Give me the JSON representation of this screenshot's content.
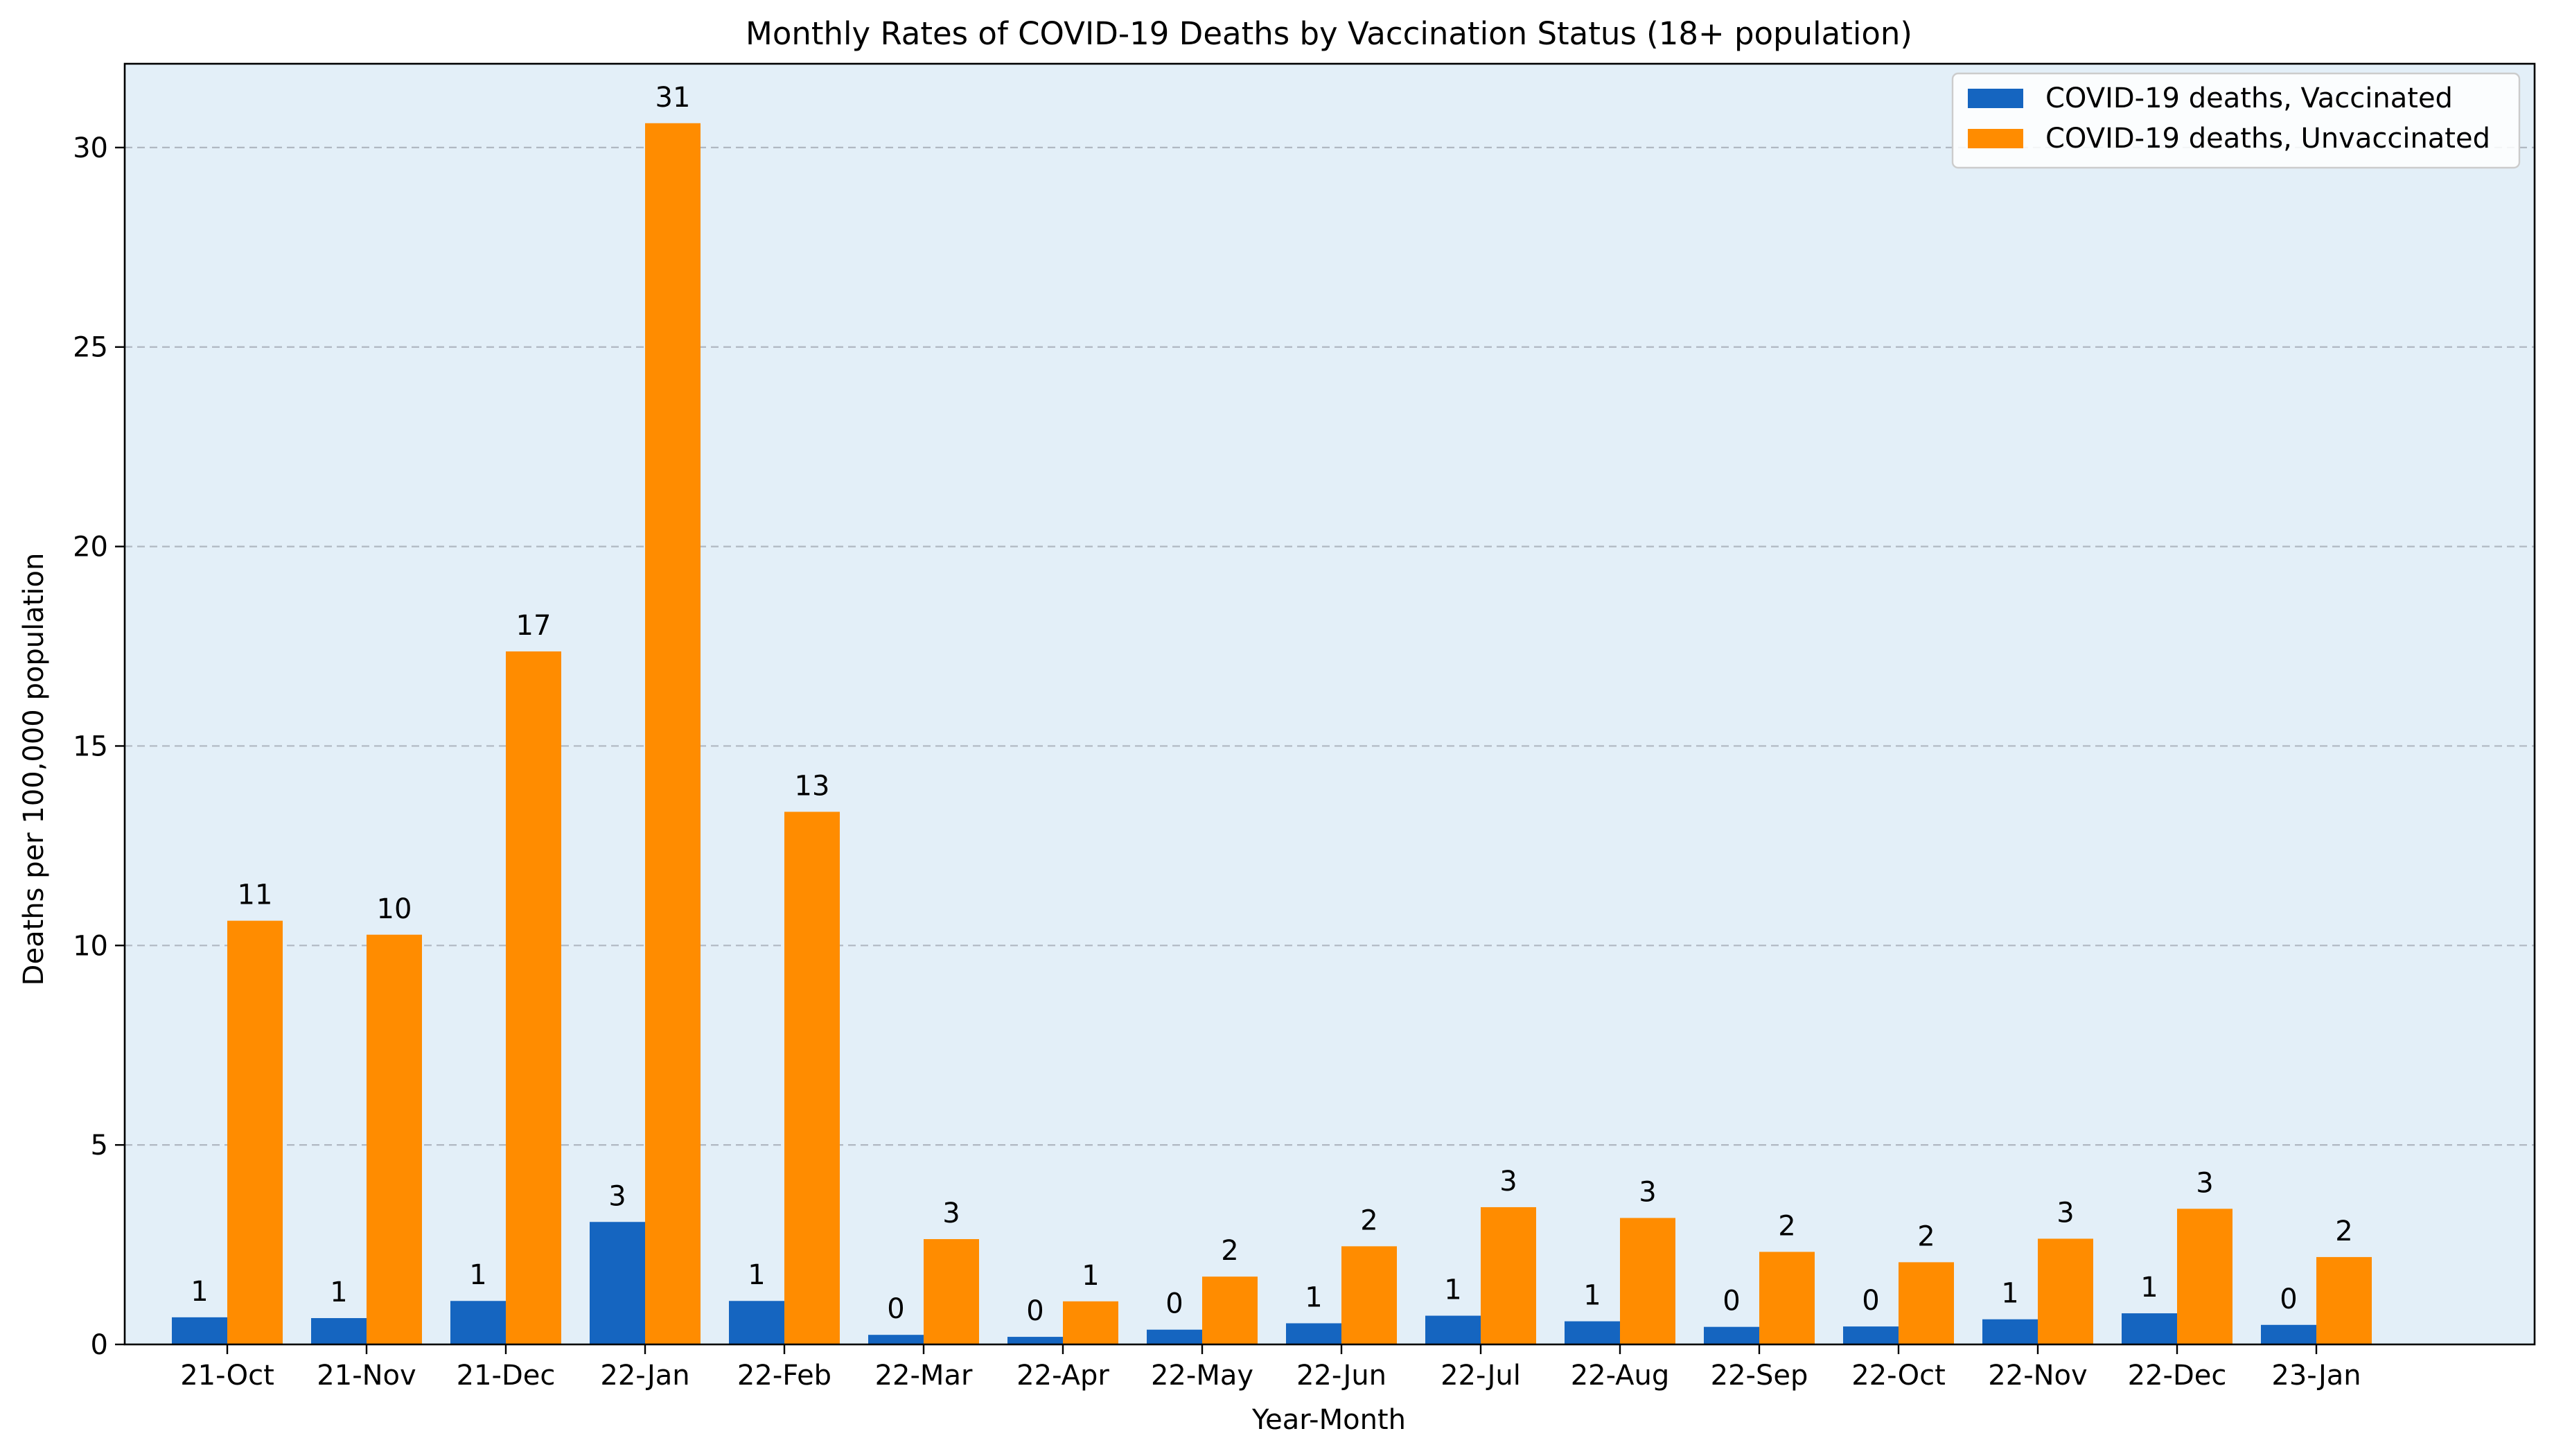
{
  "colors": {
    "vaccinated": "#1565C0",
    "unvaccinated": "#FF8C00",
    "plot_background": "#E3EFF8"
  },
  "chart_data": {
    "type": "bar",
    "title": "Monthly Rates of COVID-19 Deaths by Vaccination Status (18+ population)",
    "xlabel": "Year-Month",
    "ylabel": "Deaths per 100,000 population",
    "ylim": [
      0,
      32.1
    ],
    "yticks": [
      0,
      5,
      10,
      15,
      20,
      25,
      30
    ],
    "grid": "horizontal dashed",
    "legend_position": "top-right",
    "categories": [
      "21-Oct",
      "21-Nov",
      "21-Dec",
      "22-Jan",
      "22-Feb",
      "22-Mar",
      "22-Apr",
      "22-May",
      "22-Jun",
      "22-Jul",
      "22-Aug",
      "22-Sep",
      "22-Oct",
      "22-Nov",
      "22-Dec",
      "23-Jan"
    ],
    "series": [
      {
        "name": "COVID-19 deaths, Vaccinated",
        "color": "#1565C0",
        "values": [
          0.68,
          0.66,
          1.09,
          3.07,
          1.09,
          0.24,
          0.19,
          0.37,
          0.53,
          0.72,
          0.58,
          0.44,
          0.45,
          0.63,
          0.78,
          0.49
        ],
        "labels": [
          "1",
          "1",
          "1",
          "3",
          "1",
          "0",
          "0",
          "0",
          "1",
          "1",
          "1",
          "0",
          "0",
          "1",
          "1",
          "0"
        ]
      },
      {
        "name": "COVID-19 deaths, Unvaccinated",
        "color": "#FF8C00",
        "values": [
          10.62,
          10.27,
          17.37,
          30.61,
          13.35,
          2.64,
          1.08,
          1.7,
          2.46,
          3.44,
          3.17,
          2.32,
          2.06,
          2.65,
          3.4,
          2.19
        ],
        "labels": [
          "11",
          "10",
          "17",
          "31",
          "13",
          "3",
          "1",
          "2",
          "2",
          "3",
          "3",
          "2",
          "2",
          "3",
          "3",
          "2"
        ]
      }
    ]
  }
}
